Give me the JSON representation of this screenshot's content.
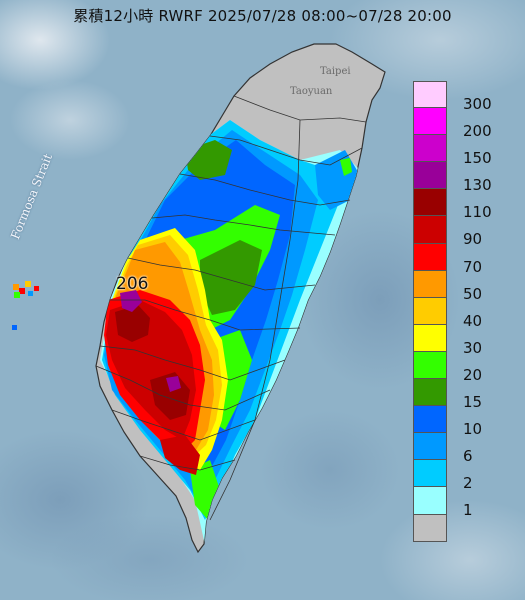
{
  "title": "累積12小時 RWRF 2025/07/28 08:00~07/28 20:00",
  "strait_label": "Formosa Strait",
  "city_labels": [
    "Taipei",
    "Taoyuan"
  ],
  "max_value_label": "206",
  "legend": [
    {
      "label": "300",
      "color": "#ffccff"
    },
    {
      "label": "200",
      "color": "#ff00ff"
    },
    {
      "label": "150",
      "color": "#cc00cc"
    },
    {
      "label": "130",
      "color": "#990099"
    },
    {
      "label": "110",
      "color": "#990000"
    },
    {
      "label": "90",
      "color": "#cc0000"
    },
    {
      "label": "70",
      "color": "#ff0000"
    },
    {
      "label": "50",
      "color": "#ff9900"
    },
    {
      "label": "40",
      "color": "#ffcc00"
    },
    {
      "label": "30",
      "color": "#ffff00"
    },
    {
      "label": "20",
      "color": "#33ff00"
    },
    {
      "label": "15",
      "color": "#339900"
    },
    {
      "label": "10",
      "color": "#0066ff"
    },
    {
      "label": "6",
      "color": "#0099ff"
    },
    {
      "label": "2",
      "color": "#00ccff"
    },
    {
      "label": "1",
      "color": "#99ffff"
    },
    {
      "label": "",
      "color": "#c0c0c0"
    }
  ],
  "colors": {
    "sea": "#8fb2c8",
    "land_no_rain": "#c0c0c0",
    "boundary": "#333333"
  }
}
